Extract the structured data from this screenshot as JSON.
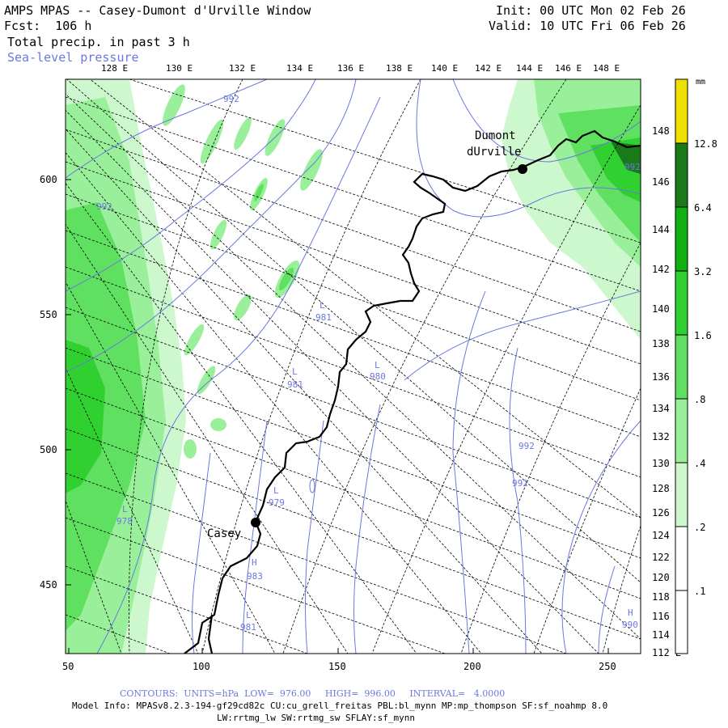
{
  "header": {
    "title": "AMPS MPAS -- Casey-Dumont d'Urville Window",
    "fcst": "Fcst:  106 h",
    "field": "Total precip. in past 3 h",
    "contour_field": "Sea-level pressure",
    "init": "Init: 00 UTC Mon 02 Feb 26",
    "valid": "Valid: 10 UTC Fri 06 Feb 26"
  },
  "top_lon_labels": [
    "128 E",
    "130 E",
    "132 E",
    "134 E",
    "136 E",
    "138 E",
    "140 E",
    "142 E",
    "144 E",
    "146 E",
    "148 E"
  ],
  "right_lon_labels": [
    "148 E",
    "146 E",
    "144 E",
    "142 E",
    "140 E",
    "138 E",
    "136 E",
    "134 E",
    "132 E",
    "130 E",
    "128 E",
    "126 E",
    "124 E",
    "122 E",
    "120 E",
    "118 E",
    "116 E",
    "114 E",
    "112 E"
  ],
  "x_axis_labels": [
    "50",
    "100",
    "150",
    "200",
    "250"
  ],
  "y_axis_labels": [
    "600",
    "550",
    "500",
    "450"
  ],
  "places": {
    "dumont_line1": "Dumont",
    "dumont_line2": "dUrville",
    "casey": "Casey"
  },
  "contour_labels": [
    {
      "text": "992"
    },
    {
      "text": "992"
    },
    {
      "text": "L"
    },
    {
      "text": "981"
    },
    {
      "text": "L"
    },
    {
      "text": "980"
    },
    {
      "text": "L"
    },
    {
      "text": "981"
    },
    {
      "text": "L"
    },
    {
      "text": "979"
    },
    {
      "text": "L"
    },
    {
      "text": "978"
    },
    {
      "text": "H"
    },
    {
      "text": "983"
    },
    {
      "text": "L"
    },
    {
      "text": "981"
    },
    {
      "text": "992"
    },
    {
      "text": "992"
    },
    {
      "text": "H"
    },
    {
      "text": "990"
    },
    {
      "text": "992"
    }
  ],
  "colorbar": {
    "unit": "mm",
    "levels": [
      "12.8",
      "6.4",
      "3.2",
      "1.6",
      ".8",
      ".4",
      ".2",
      ".1"
    ],
    "colors": [
      "#f0e000",
      "#1a7a1a",
      "#10b010",
      "#30d030",
      "#60e060",
      "#9af09a",
      "#cdf7cd",
      "#ffffff"
    ]
  },
  "footer": {
    "contours": "CONTOURS:  UNITS=hPa  LOW=  976.00     HIGH=  996.00     INTERVAL=   4.0000",
    "model_info": "Model Info: MPASv8.2.3-194-gf29cd82c CU:cu_grell_freitas PBL:bl_mynn MP:mp_thompson SF:sf_noahmp 8.0",
    "model_info2": "LW:rrtmg_lw SW:rrtmg_sw SFLAY:sf_mynn"
  }
}
